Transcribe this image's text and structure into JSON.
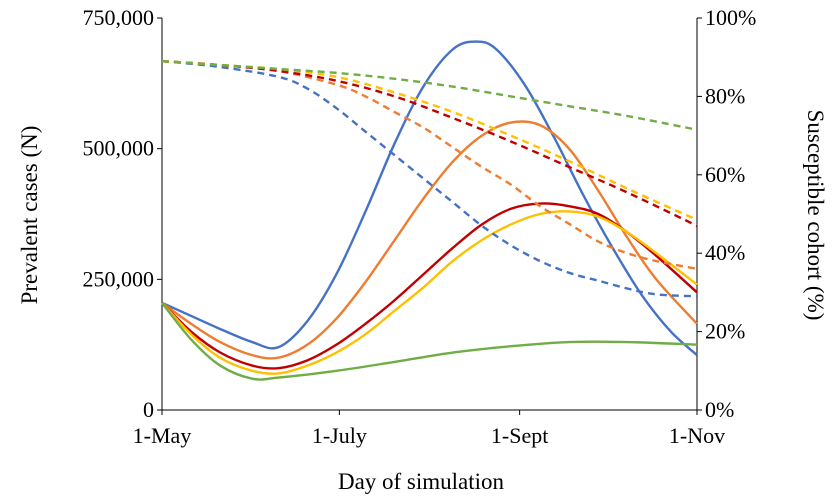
{
  "chart_data": {
    "type": "line",
    "xlabel": "Day of simulation",
    "ylabel_left": "Prevalent cases (N)",
    "ylabel_right": "Susceptible cohort (%)",
    "x_ticks": [
      "1-May",
      "1-July",
      "1-Sept",
      "1-Nov"
    ],
    "x_tick_days": [
      0,
      61,
      123,
      184
    ],
    "xlim": [
      0,
      184
    ],
    "y_left_ticks": [
      "0",
      "250,000",
      "500,000",
      "750,000"
    ],
    "y_left_tick_values": [
      0,
      250000,
      500000,
      750000
    ],
    "ylim_left": [
      0,
      750000
    ],
    "y_right_ticks": [
      "0%",
      "20%",
      "40%",
      "60%",
      "80%",
      "100%"
    ],
    "y_right_tick_values": [
      0,
      20,
      40,
      60,
      80,
      100
    ],
    "ylim_right": [
      0,
      100
    ],
    "grid": false,
    "legend": "none",
    "series": [
      {
        "axis": "left",
        "style": "solid",
        "color": "#4472C4",
        "x": [
          0,
          10,
          20,
          31,
          40,
          50,
          60,
          70,
          80,
          90,
          100,
          108,
          115,
          125,
          135,
          145,
          155,
          165,
          175,
          184
        ],
        "values": [
          205000,
          180000,
          155000,
          130000,
          120000,
          170000,
          260000,
          380000,
          510000,
          620000,
          690000,
          705000,
          690000,
          620000,
          520000,
          410000,
          310000,
          220000,
          150000,
          105000
        ]
      },
      {
        "axis": "left",
        "style": "solid",
        "color": "#ED7D31",
        "x": [
          0,
          10,
          20,
          31,
          40,
          50,
          60,
          70,
          80,
          90,
          100,
          110,
          120,
          130,
          140,
          150,
          160,
          170,
          184
        ],
        "values": [
          205000,
          165000,
          130000,
          105000,
          100000,
          125000,
          175000,
          245000,
          325000,
          405000,
          475000,
          525000,
          550000,
          545000,
          500000,
          420000,
          330000,
          250000,
          165000
        ]
      },
      {
        "axis": "left",
        "style": "solid",
        "color": "#C00000",
        "x": [
          0,
          10,
          20,
          31,
          40,
          50,
          60,
          70,
          80,
          90,
          100,
          110,
          120,
          130,
          140,
          150,
          160,
          170,
          184
        ],
        "values": [
          205000,
          150000,
          110000,
          85000,
          80000,
          95000,
          125000,
          165000,
          210000,
          260000,
          310000,
          355000,
          385000,
          395000,
          390000,
          375000,
          340000,
          295000,
          225000
        ]
      },
      {
        "axis": "left",
        "style": "solid",
        "color": "#FFC000",
        "x": [
          0,
          10,
          20,
          31,
          40,
          50,
          60,
          70,
          80,
          90,
          100,
          110,
          120,
          130,
          140,
          150,
          160,
          170,
          184
        ],
        "values": [
          205000,
          145000,
          100000,
          75000,
          70000,
          85000,
          110000,
          145000,
          190000,
          235000,
          285000,
          325000,
          355000,
          375000,
          380000,
          370000,
          340000,
          300000,
          240000
        ]
      },
      {
        "axis": "left",
        "style": "solid",
        "color": "#70AD47",
        "x": [
          0,
          10,
          20,
          31,
          40,
          60,
          80,
          100,
          120,
          140,
          160,
          184
        ],
        "values": [
          205000,
          135000,
          85000,
          60000,
          62000,
          75000,
          92000,
          110000,
          122000,
          130000,
          130000,
          125000
        ]
      },
      {
        "axis": "right",
        "style": "dashed",
        "color": "#4472C4",
        "x": [
          0,
          20,
          40,
          50,
          60,
          70,
          80,
          90,
          100,
          110,
          120,
          130,
          140,
          150,
          160,
          170,
          184
        ],
        "values": [
          89,
          87.5,
          85,
          82,
          77,
          71,
          65,
          59,
          53,
          47,
          42,
          38,
          35,
          33,
          31,
          29.5,
          29
        ]
      },
      {
        "axis": "right",
        "style": "dashed",
        "color": "#ED7D31",
        "x": [
          0,
          20,
          40,
          60,
          70,
          80,
          90,
          100,
          110,
          120,
          130,
          140,
          150,
          160,
          170,
          184
        ],
        "values": [
          89,
          88,
          86.5,
          83,
          80,
          76,
          72,
          67,
          62,
          57.5,
          52,
          47.5,
          43,
          40,
          38,
          36
        ]
      },
      {
        "axis": "right",
        "style": "dashed",
        "color": "#C00000",
        "x": [
          0,
          20,
          40,
          60,
          80,
          100,
          120,
          140,
          160,
          184
        ],
        "values": [
          89,
          88,
          86.5,
          84,
          80,
          74.5,
          68.5,
          62,
          55.5,
          47
        ]
      },
      {
        "axis": "right",
        "style": "dashed",
        "color": "#FFC000",
        "x": [
          0,
          20,
          40,
          60,
          80,
          100,
          120,
          140,
          160,
          184
        ],
        "values": [
          89,
          88,
          87,
          85,
          81,
          76,
          70,
          63.5,
          56.5,
          48.5
        ]
      },
      {
        "axis": "right",
        "style": "dashed",
        "color": "#70AD47",
        "x": [
          0,
          20,
          40,
          60,
          80,
          100,
          120,
          140,
          160,
          184
        ],
        "values": [
          89,
          88,
          87,
          86,
          84.5,
          82.5,
          80,
          77.5,
          75,
          71.5
        ]
      }
    ]
  }
}
